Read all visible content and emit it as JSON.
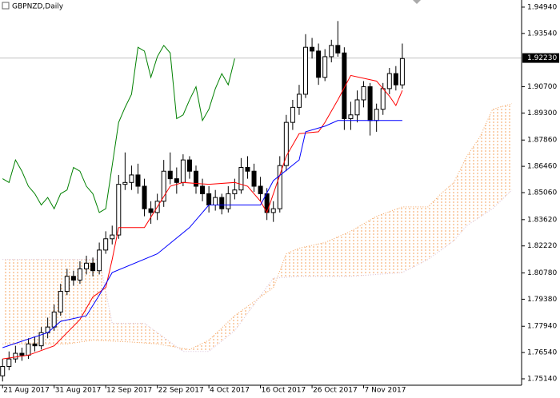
{
  "chart_data": {
    "type": "candlestick",
    "title": "GBPNZD,Daily",
    "xlim": [
      -0.4,
      80.5
    ],
    "xticks": [
      {
        "value": 0,
        "label": "21 Aug 2017"
      },
      {
        "value": 8,
        "label": "31 Aug 2017"
      },
      {
        "value": 16,
        "label": "12 Sep 2017"
      },
      {
        "value": 24,
        "label": "22 Sep 2017"
      },
      {
        "value": 32,
        "label": "4 Oct 2017"
      },
      {
        "value": 40,
        "label": "16 Oct 2017"
      },
      {
        "value": 48,
        "label": "26 Oct 2017"
      },
      {
        "value": 56,
        "label": "7 Nov 2017"
      }
    ],
    "ylim": [
      1.748,
      1.9532
    ],
    "yticks": [
      {
        "value": 1.9494,
        "label": "1.94940"
      },
      {
        "value": 1.9354,
        "label": "1.93540"
      },
      {
        "value": 1.907,
        "label": "1.90700"
      },
      {
        "value": 1.893,
        "label": "1.89300"
      },
      {
        "value": 1.8786,
        "label": "1.87860"
      },
      {
        "value": 1.8646,
        "label": "1.86460"
      },
      {
        "value": 1.8506,
        "label": "1.85060"
      },
      {
        "value": 1.8362,
        "label": "1.83620"
      },
      {
        "value": 1.8222,
        "label": "1.82220"
      },
      {
        "value": 1.8078,
        "label": "1.80780"
      },
      {
        "value": 1.7938,
        "label": "1.79380"
      },
      {
        "value": 1.7794,
        "label": "1.77940"
      },
      {
        "value": 1.7654,
        "label": "1.76540"
      },
      {
        "value": 1.7514,
        "label": "1.75140"
      }
    ],
    "last_price": {
      "value": 1.9223,
      "label": "1.92230"
    },
    "ohlc": {
      "open": [
        1.753,
        1.758,
        1.762,
        1.765,
        1.764,
        1.77,
        1.769,
        1.776,
        1.779,
        1.787,
        1.798,
        1.806,
        1.804,
        1.81,
        1.813,
        1.809,
        1.82,
        1.826,
        1.828,
        1.855,
        1.856,
        1.86,
        1.854,
        1.842,
        1.84,
        1.846,
        1.862,
        1.858,
        1.856,
        1.868,
        1.862,
        1.854,
        1.85,
        1.844,
        1.848,
        1.842,
        1.85,
        1.852,
        1.864,
        1.862,
        1.854,
        1.85,
        1.84,
        1.842,
        1.865,
        1.888,
        1.896,
        1.903,
        1.928,
        1.926,
        1.912,
        1.923,
        1.929,
        1.925,
        1.89,
        1.892,
        1.9,
        1.907,
        1.889,
        1.895,
        1.906,
        1.914,
        1.908
      ],
      "high": [
        1.762,
        1.766,
        1.769,
        1.768,
        1.773,
        1.774,
        1.779,
        1.784,
        1.791,
        1.802,
        1.81,
        1.809,
        1.814,
        1.817,
        1.816,
        1.824,
        1.83,
        1.833,
        1.86,
        1.872,
        1.865,
        1.866,
        1.858,
        1.846,
        1.85,
        1.868,
        1.872,
        1.864,
        1.871,
        1.87,
        1.865,
        1.858,
        1.854,
        1.852,
        1.85,
        1.854,
        1.858,
        1.869,
        1.87,
        1.866,
        1.859,
        1.853,
        1.846,
        1.87,
        1.892,
        1.9,
        1.908,
        1.935,
        1.933,
        1.93,
        1.927,
        1.932,
        1.942,
        1.928,
        1.899,
        1.905,
        1.91,
        1.909,
        1.898,
        1.909,
        1.917,
        1.918,
        1.93
      ],
      "low": [
        1.75,
        1.756,
        1.76,
        1.761,
        1.762,
        1.766,
        1.767,
        1.773,
        1.777,
        1.785,
        1.796,
        1.801,
        1.802,
        1.807,
        1.806,
        1.807,
        1.818,
        1.823,
        1.826,
        1.852,
        1.852,
        1.85,
        1.838,
        1.834,
        1.836,
        1.843,
        1.855,
        1.85,
        1.854,
        1.858,
        1.85,
        1.846,
        1.84,
        1.841,
        1.839,
        1.84,
        1.847,
        1.85,
        1.858,
        1.851,
        1.846,
        1.836,
        1.835,
        1.84,
        1.862,
        1.884,
        1.892,
        1.901,
        1.922,
        1.908,
        1.91,
        1.92,
        1.923,
        1.884,
        1.884,
        1.888,
        1.896,
        1.881,
        1.883,
        1.892,
        1.903,
        1.905,
        1.906
      ],
      "close": [
        1.758,
        1.762,
        1.765,
        1.764,
        1.77,
        1.769,
        1.776,
        1.779,
        1.787,
        1.798,
        1.806,
        1.804,
        1.81,
        1.813,
        1.809,
        1.82,
        1.826,
        1.828,
        1.855,
        1.856,
        1.86,
        1.854,
        1.842,
        1.84,
        1.846,
        1.862,
        1.858,
        1.856,
        1.868,
        1.862,
        1.854,
        1.85,
        1.844,
        1.848,
        1.842,
        1.85,
        1.852,
        1.864,
        1.862,
        1.854,
        1.85,
        1.84,
        1.842,
        1.865,
        1.888,
        1.896,
        1.903,
        1.928,
        1.926,
        1.912,
        1.923,
        1.929,
        1.925,
        1.89,
        1.892,
        1.9,
        1.907,
        1.889,
        1.895,
        1.906,
        1.914,
        1.908,
        1.922
      ]
    },
    "tenkan": {
      "color": "#ff0000",
      "x": [
        0,
        4,
        8,
        12,
        14,
        16,
        17,
        18,
        22,
        26,
        28,
        32,
        36,
        38,
        40,
        41,
        42,
        44,
        46,
        49,
        50,
        52,
        54,
        58,
        60,
        61,
        62
      ],
      "values": [
        1.762,
        1.764,
        1.769,
        1.783,
        1.795,
        1.8,
        1.815,
        1.832,
        1.832,
        1.854,
        1.856,
        1.855,
        1.856,
        1.854,
        1.846,
        1.84,
        1.85,
        1.87,
        1.882,
        1.883,
        1.888,
        1.9,
        1.913,
        1.91,
        1.902,
        1.897,
        1.905
      ]
    },
    "kijun": {
      "color": "#0000ff",
      "x": [
        0,
        7,
        9,
        13,
        15,
        17,
        24,
        29,
        32,
        40,
        42,
        46,
        47,
        50,
        52,
        62
      ],
      "values": [
        1.768,
        1.776,
        1.782,
        1.785,
        1.796,
        1.808,
        1.818,
        1.832,
        1.844,
        1.844,
        1.857,
        1.868,
        1.883,
        1.886,
        1.889,
        1.889
      ]
    },
    "chikou": {
      "color": "#008000",
      "x": [
        0,
        1,
        2,
        3,
        4,
        5,
        6,
        7,
        8,
        9,
        10,
        11,
        12,
        13,
        14,
        15,
        16,
        17,
        18,
        19,
        20,
        21,
        22,
        23,
        24,
        25,
        26,
        27,
        28,
        29,
        30,
        31,
        32,
        33,
        34,
        35,
        36
      ],
      "values": [
        1.858,
        1.856,
        1.868,
        1.862,
        1.854,
        1.85,
        1.844,
        1.848,
        1.842,
        1.85,
        1.852,
        1.864,
        1.862,
        1.854,
        1.85,
        1.84,
        1.842,
        1.865,
        1.888,
        1.896,
        1.903,
        1.928,
        1.926,
        1.912,
        1.923,
        1.929,
        1.925,
        1.89,
        1.892,
        1.9,
        1.907,
        1.889,
        1.895,
        1.906,
        1.914,
        1.908,
        1.922
      ]
    },
    "span_a": {
      "color": "#f4a460",
      "x": [
        0,
        10,
        14,
        20,
        24,
        29,
        32,
        36,
        42,
        44,
        46,
        50,
        54,
        58,
        62,
        66,
        68,
        70,
        72,
        74,
        76,
        79
      ],
      "values": [
        1.77,
        1.77,
        1.772,
        1.771,
        1.77,
        1.767,
        1.772,
        1.785,
        1.8,
        1.818,
        1.821,
        1.824,
        1.83,
        1.838,
        1.843,
        1.843,
        1.85,
        1.856,
        1.87,
        1.88,
        1.895,
        1.898
      ]
    },
    "span_b": {
      "color": "#d8bfd8",
      "x": [
        0,
        15,
        17,
        22,
        28,
        32,
        36,
        42,
        46,
        54,
        62,
        66,
        70,
        72,
        76,
        79
      ],
      "values": [
        1.815,
        1.815,
        1.781,
        1.781,
        1.766,
        1.766,
        1.777,
        1.805,
        1.806,
        1.806,
        1.808,
        1.815,
        1.825,
        1.833,
        1.842,
        1.852
      ]
    }
  }
}
